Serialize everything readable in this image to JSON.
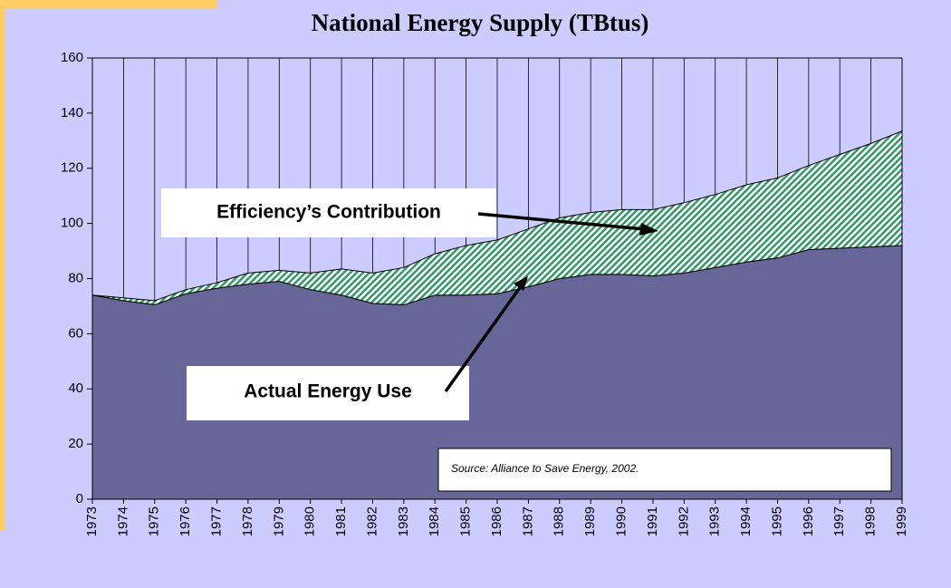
{
  "chart_data": {
    "type": "stacked-area",
    "title": "National Energy Supply (TBtus)",
    "annotation": "Source: Alliance to Save Energy, 2002.",
    "categories": [
      "1973",
      "1974",
      "1975",
      "1976",
      "1977",
      "1978",
      "1979",
      "1980",
      "1981",
      "1982",
      "1983",
      "1984",
      "1985",
      "1986",
      "1987",
      "1988",
      "1989",
      "1990",
      "1991",
      "1992",
      "1993",
      "1994",
      "1995",
      "1996",
      "1997",
      "1998",
      "1999"
    ],
    "series": [
      {
        "name": "Actual Energy Use",
        "color": "#666699",
        "values": [
          74,
          72,
          70.5,
          74.5,
          76.5,
          78,
          79,
          76,
          74,
          71,
          70.5,
          74,
          74,
          74.5,
          77,
          80,
          81.5,
          81.5,
          81,
          82,
          84,
          86,
          87.5,
          90.5,
          91,
          91.5,
          92
        ]
      },
      {
        "name": "Efficiency’s Contribution",
        "color": "#339966",
        "values": [
          0,
          1,
          1.5,
          1.5,
          2,
          4,
          4,
          6,
          9.5,
          11,
          13.5,
          15,
          18,
          19.5,
          21,
          22,
          22.5,
          23.5,
          24,
          25.5,
          26.5,
          28,
          29,
          30.5,
          34,
          37.5,
          41.5
        ]
      }
    ],
    "ylim": [
      0,
      160
    ],
    "yticks": [
      0,
      20,
      40,
      60,
      80,
      100,
      120,
      140,
      160
    ],
    "grid": true
  }
}
